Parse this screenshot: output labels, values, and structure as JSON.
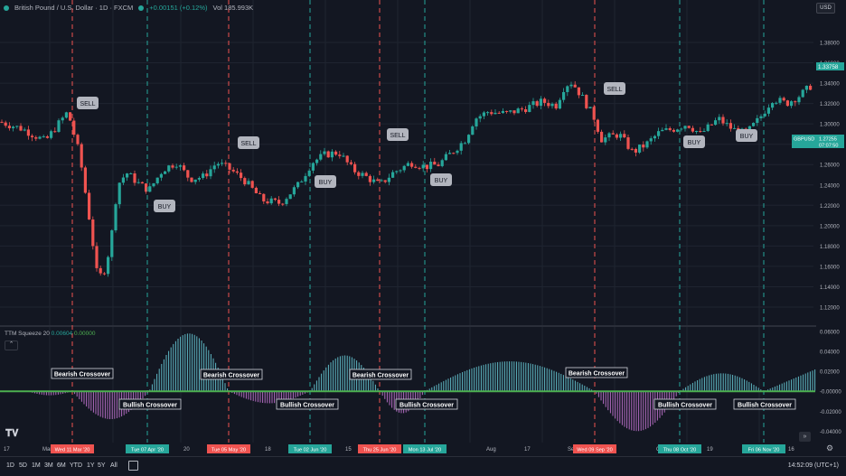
{
  "header": {
    "symbol": "British Pound / U.S. Dollar · 1D · FXCM",
    "change": "+0.00151 (+0.12%)",
    "volume": "Vol 185.993K",
    "currency": "USD"
  },
  "price_axis": {
    "ticks": [
      "1.38000",
      "1.36000",
      "1.34000",
      "1.32000",
      "1.30000",
      "1.28000",
      "1.26000",
      "1.24000",
      "1.22000",
      "1.20000",
      "1.18000",
      "1.16000",
      "1.14000",
      "1.12000"
    ],
    "last_price": "1.33758",
    "symbol_tag": "GBPUSD",
    "symbol_price": "1.27255",
    "countdown": "07:07:50"
  },
  "indicator": {
    "name": "TTM Squeeze 20",
    "value1": "0.00604",
    "value2": "0.00000",
    "ticks": [
      "0.06000",
      "0.04000",
      "0.02000",
      "-0.00000",
      "-0.02000",
      "-0.04000"
    ]
  },
  "signals": [
    {
      "label": "SELL"
    },
    {
      "label": "BUY"
    },
    {
      "label": "SELL"
    },
    {
      "label": "BUY"
    },
    {
      "label": "SELL"
    },
    {
      "label": "BUY"
    },
    {
      "label": "SELL"
    },
    {
      "label": "BUY"
    },
    {
      "label": "BUY"
    }
  ],
  "crossovers": [
    {
      "label": "Bearish Crossover"
    },
    {
      "label": "Bullish Crossover"
    },
    {
      "label": "Bearish Crossover"
    },
    {
      "label": "Bullish Crossover"
    },
    {
      "label": "Bearish Crossover"
    },
    {
      "label": "Bullish Crossover"
    },
    {
      "label": "Bearish Crossover"
    },
    {
      "label": "Bullish Crossover"
    },
    {
      "label": "Bullish Crossover"
    }
  ],
  "time_axis": {
    "labels": [
      "17",
      "Mar",
      "20",
      "18",
      "15",
      "Aug",
      "17",
      "Se",
      "O",
      "19",
      "16"
    ],
    "dates": [
      "Wed 11 Mar '20",
      "Tue 07 Apr '20",
      "Tue 05 May '20",
      "Tue 02 Jun '20",
      "Thu 25 Jun '20",
      "Mon 13 Jul '20",
      "Wed 09 Sep '20",
      "Thu 08 Oct '20",
      "Fri 06 Nov '20"
    ]
  },
  "timeframes": [
    "1D",
    "5D",
    "1M",
    "3M",
    "6M",
    "YTD",
    "1Y",
    "5Y",
    "All"
  ],
  "clock": "14:52:09 (UTC+1)",
  "colors": {
    "bull": "#26a69a",
    "bear": "#ef5350",
    "bg": "#131722",
    "grid": "#1f2430",
    "hist_bull": "#5fb8c4",
    "hist_bear": "#b26bc0",
    "zero": "#4caf50"
  },
  "icons": {
    "logo": "tradingview-icon",
    "calendar": "calendar-icon",
    "settings": "gear-icon",
    "scroll": "scroll-right-icon"
  }
}
